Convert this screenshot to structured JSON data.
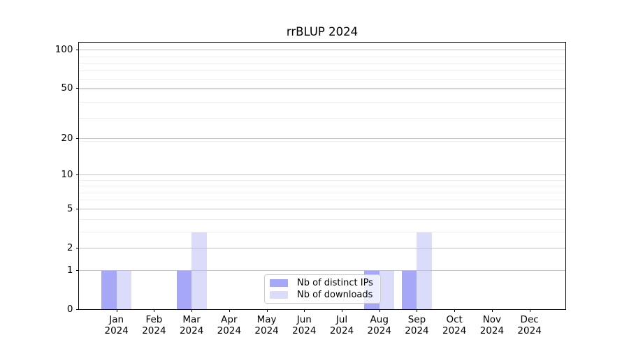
{
  "chart_data": {
    "type": "bar",
    "title": "rrBLUP 2024",
    "x_months": [
      "Jan",
      "Feb",
      "Mar",
      "Apr",
      "May",
      "Jun",
      "Jul",
      "Aug",
      "Sep",
      "Oct",
      "Nov",
      "Dec"
    ],
    "x_year": "2024",
    "series": [
      {
        "name": "Nb of distinct IPs",
        "color": "#a6a8f7",
        "values": [
          1,
          0,
          1,
          0,
          0,
          0,
          0,
          1,
          1,
          0,
          0,
          0
        ]
      },
      {
        "name": "Nb of downloads",
        "color": "#dadcfa",
        "values": [
          1,
          0,
          3,
          0,
          0,
          0,
          0,
          1,
          3,
          0,
          0,
          0
        ]
      }
    ],
    "yscale": "log1p",
    "yticks": [
      0,
      1,
      2,
      5,
      10,
      20,
      50,
      100
    ],
    "yticks_minor_log1p": [
      4,
      5,
      7,
      8,
      9,
      10,
      20,
      30,
      40,
      50,
      60,
      70,
      80,
      90
    ],
    "ylim": [
      0,
      115
    ],
    "grid": true,
    "legend_position": "lower center",
    "colors": {
      "major_grid": "#c2c2c2",
      "minor_grid": "#efefef",
      "spine": "#000000",
      "background": "#ffffff"
    }
  }
}
